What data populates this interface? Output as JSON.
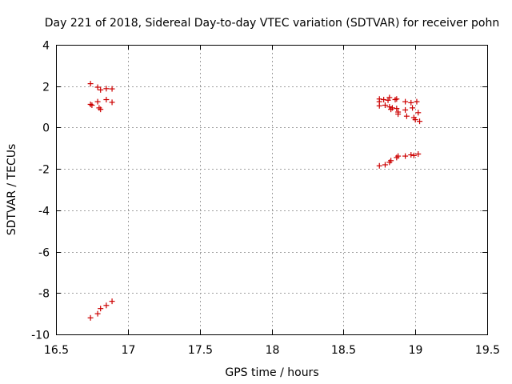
{
  "chart_data": {
    "type": "scatter",
    "title": "Day 221 of 2018, Sidereal Day-to-day VTEC variation (SDTVAR) for receiver pohn",
    "xlabel": "GPS time / hours",
    "ylabel": "SDTVAR / TECUs",
    "xlim": [
      16.5,
      19.5
    ],
    "ylim": [
      -10,
      4
    ],
    "xticks": [
      16.5,
      17,
      17.5,
      18,
      18.5,
      19,
      19.5
    ],
    "xtick_labels": [
      "16.5",
      "17",
      "17.5",
      "18",
      "18.5",
      "19",
      "19.5"
    ],
    "yticks": [
      -10,
      -8,
      -6,
      -4,
      -2,
      0,
      2,
      4
    ],
    "ytick_labels": [
      "-10",
      "-8",
      "-6",
      "-4",
      "-2",
      "0",
      "2",
      "4"
    ],
    "grid": true,
    "marker": "+",
    "color": "#cc0000",
    "series": [
      {
        "name": "SDTVAR",
        "points": [
          [
            16.74,
            2.12
          ],
          [
            16.79,
            1.95
          ],
          [
            16.81,
            1.82
          ],
          [
            16.85,
            1.88
          ],
          [
            16.89,
            1.87
          ],
          [
            16.74,
            1.12
          ],
          [
            16.75,
            1.08
          ],
          [
            16.79,
            1.25
          ],
          [
            16.8,
            0.95
          ],
          [
            16.81,
            0.88
          ],
          [
            16.85,
            1.35
          ],
          [
            16.89,
            1.22
          ],
          [
            16.74,
            -9.2
          ],
          [
            16.79,
            -9.0
          ],
          [
            16.81,
            -8.75
          ],
          [
            16.85,
            -8.6
          ],
          [
            16.89,
            -8.4
          ],
          [
            18.75,
            1.38
          ],
          [
            18.75,
            1.25
          ],
          [
            18.75,
            1.05
          ],
          [
            18.78,
            1.35
          ],
          [
            18.79,
            1.08
          ],
          [
            18.81,
            1.32
          ],
          [
            18.82,
            1.45
          ],
          [
            18.82,
            1.0
          ],
          [
            18.83,
            0.88
          ],
          [
            18.84,
            0.95
          ],
          [
            18.86,
            1.35
          ],
          [
            18.87,
            1.38
          ],
          [
            18.87,
            0.92
          ],
          [
            18.88,
            0.75
          ],
          [
            18.88,
            0.65
          ],
          [
            18.93,
            1.25
          ],
          [
            18.93,
            0.85
          ],
          [
            18.94,
            0.55
          ],
          [
            18.97,
            1.2
          ],
          [
            18.98,
            0.95
          ],
          [
            18.99,
            0.48
          ],
          [
            19.0,
            0.38
          ],
          [
            19.01,
            1.25
          ],
          [
            19.02,
            0.72
          ],
          [
            19.03,
            0.3
          ],
          [
            18.75,
            -1.85
          ],
          [
            18.79,
            -1.8
          ],
          [
            18.82,
            -1.68
          ],
          [
            18.83,
            -1.6
          ],
          [
            18.87,
            -1.45
          ],
          [
            18.88,
            -1.38
          ],
          [
            18.93,
            -1.38
          ],
          [
            18.97,
            -1.32
          ],
          [
            18.99,
            -1.35
          ],
          [
            19.02,
            -1.28
          ]
        ]
      }
    ]
  }
}
